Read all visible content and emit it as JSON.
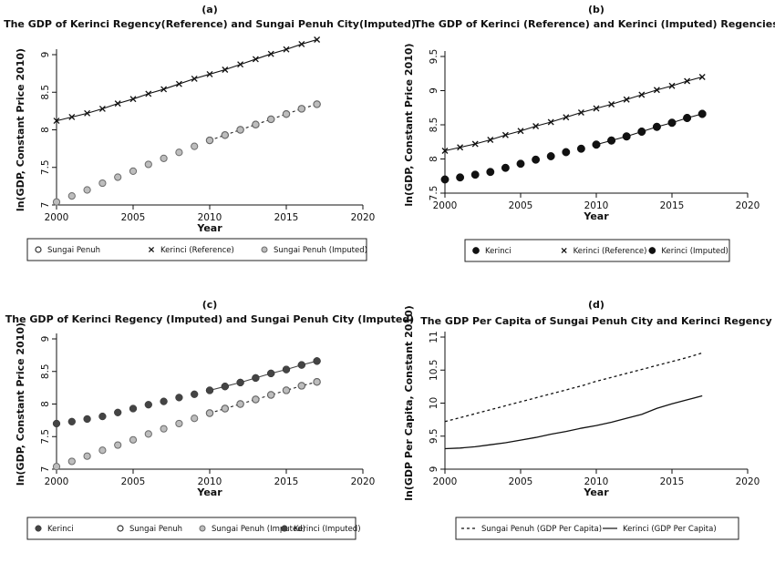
{
  "chart_data": [
    {
      "type": "line",
      "panel": "(a)",
      "title": "The GDP of Kerinci Regency(Reference) and Sungai Penuh City(Imputed)",
      "xlabel": "Year",
      "ylabel": "ln(GDP, Constant Price 2010)",
      "xlim": [
        2000,
        2020
      ],
      "ylim": [
        7,
        9
      ],
      "xticks": [
        2000,
        2005,
        2010,
        2015,
        2020
      ],
      "yticks": [
        7,
        7.5,
        8,
        8.5,
        9
      ],
      "legend_position": "bottom",
      "series": [
        {
          "name": "Sungai Penuh",
          "marker": "hollow-circle",
          "line": "dash",
          "color": "#222222",
          "x": [
            2010,
            2011,
            2012,
            2013,
            2014,
            2015,
            2016,
            2017
          ],
          "y": [
            7.86,
            7.93,
            8.0,
            8.07,
            8.14,
            8.21,
            8.28,
            8.34
          ]
        },
        {
          "name": "Kerinci (Reference)",
          "marker": "x",
          "line": "solid",
          "color": "#111111",
          "x": [
            2000,
            2001,
            2002,
            2003,
            2004,
            2005,
            2006,
            2007,
            2008,
            2009,
            2010,
            2011,
            2012,
            2013,
            2014,
            2015,
            2016,
            2017
          ],
          "y": [
            8.12,
            8.17,
            8.22,
            8.28,
            8.35,
            8.41,
            8.48,
            8.54,
            8.61,
            8.68,
            8.74,
            8.8,
            8.87,
            8.94,
            9.01,
            9.07,
            9.14,
            9.2
          ]
        },
        {
          "name": "Sungai Penuh (Imputed)",
          "marker": "grey-circle",
          "line": "none",
          "color": "#8a8a8a",
          "x": [
            2000,
            2001,
            2002,
            2003,
            2004,
            2005,
            2006,
            2007,
            2008,
            2009,
            2010,
            2011,
            2012,
            2013,
            2014,
            2015,
            2016,
            2017
          ],
          "y": [
            7.04,
            7.12,
            7.2,
            7.29,
            7.37,
            7.45,
            7.54,
            7.62,
            7.7,
            7.78,
            7.86,
            7.93,
            8.0,
            8.07,
            8.14,
            8.21,
            8.28,
            8.34
          ]
        }
      ]
    },
    {
      "type": "line",
      "panel": "(b)",
      "title": "The GDP of Kerinci (Reference) and Kerinci (Imputed) Regencies",
      "xlabel": "Year",
      "ylabel": "ln(GDP, Constant Price 2010)",
      "xlim": [
        2000,
        2020
      ],
      "ylim": [
        7.5,
        9.5
      ],
      "xticks": [
        2000,
        2005,
        2010,
        2015,
        2020
      ],
      "yticks": [
        7.5,
        8,
        8.5,
        9,
        9.5
      ],
      "legend_position": "bottom",
      "series": [
        {
          "name": "Kerinci",
          "marker": "black-circle",
          "line": "solid",
          "color": "#111111",
          "x": [
            2010,
            2011,
            2012,
            2013,
            2014,
            2015,
            2016,
            2017
          ],
          "y": [
            8.21,
            8.27,
            8.33,
            8.4,
            8.47,
            8.53,
            8.6,
            8.66
          ]
        },
        {
          "name": "Kerinci (Reference)",
          "marker": "x",
          "line": "solid",
          "color": "#111111",
          "x": [
            2000,
            2001,
            2002,
            2003,
            2004,
            2005,
            2006,
            2007,
            2008,
            2009,
            2010,
            2011,
            2012,
            2013,
            2014,
            2015,
            2016,
            2017
          ],
          "y": [
            8.12,
            8.17,
            8.22,
            8.28,
            8.35,
            8.41,
            8.48,
            8.54,
            8.61,
            8.68,
            8.74,
            8.8,
            8.87,
            8.94,
            9.01,
            9.07,
            9.14,
            9.2
          ]
        },
        {
          "name": "Kerinci (Imputed)",
          "marker": "black-circle",
          "line": "none",
          "color": "#111111",
          "x": [
            2000,
            2001,
            2002,
            2003,
            2004,
            2005,
            2006,
            2007,
            2008,
            2009,
            2010,
            2011,
            2012,
            2013,
            2014,
            2015,
            2016,
            2017
          ],
          "y": [
            7.7,
            7.73,
            7.77,
            7.81,
            7.87,
            7.93,
            7.99,
            8.04,
            8.1,
            8.15,
            8.21,
            8.27,
            8.33,
            8.4,
            8.47,
            8.53,
            8.6,
            8.66
          ]
        }
      ]
    },
    {
      "type": "line",
      "panel": "(c)",
      "title": "The GDP of Kerinci Regency (Imputed) and Sungai Penuh City (Imputed)",
      "xlabel": "Year",
      "ylabel": "ln(GDP, Constant Price 2010)",
      "xlim": [
        2000,
        2020
      ],
      "ylim": [
        7,
        9
      ],
      "xticks": [
        2000,
        2005,
        2010,
        2015,
        2020
      ],
      "yticks": [
        7,
        7.5,
        8,
        8.5,
        9
      ],
      "legend_position": "bottom",
      "series": [
        {
          "name": "Kerinci",
          "marker": "dark-circle",
          "line": "solid",
          "color": "#444444",
          "x": [
            2010,
            2011,
            2012,
            2013,
            2014,
            2015,
            2016,
            2017
          ],
          "y": [
            8.21,
            8.27,
            8.33,
            8.4,
            8.47,
            8.53,
            8.6,
            8.66
          ]
        },
        {
          "name": "Sungai Penuh",
          "marker": "hollow-circle",
          "line": "dash",
          "color": "#222222",
          "x": [
            2010,
            2011,
            2012,
            2013,
            2014,
            2015,
            2016,
            2017
          ],
          "y": [
            7.86,
            7.93,
            8.0,
            8.07,
            8.14,
            8.21,
            8.28,
            8.34
          ]
        },
        {
          "name": "Sungai Penuh (Imputed)",
          "marker": "grey-circle",
          "line": "none",
          "color": "#8a8a8a",
          "x": [
            2000,
            2001,
            2002,
            2003,
            2004,
            2005,
            2006,
            2007,
            2008,
            2009,
            2010,
            2011,
            2012,
            2013,
            2014,
            2015,
            2016,
            2017
          ],
          "y": [
            7.04,
            7.12,
            7.2,
            7.29,
            7.37,
            7.45,
            7.54,
            7.62,
            7.7,
            7.78,
            7.86,
            7.93,
            8.0,
            8.07,
            8.14,
            8.21,
            8.28,
            8.34
          ]
        },
        {
          "name": "Kerinci (Imputed)",
          "marker": "dark-circle",
          "line": "none",
          "color": "#444444",
          "x": [
            2000,
            2001,
            2002,
            2003,
            2004,
            2005,
            2006,
            2007,
            2008,
            2009,
            2010,
            2011,
            2012,
            2013,
            2014,
            2015,
            2016,
            2017
          ],
          "y": [
            7.7,
            7.73,
            7.77,
            7.81,
            7.87,
            7.93,
            7.99,
            8.04,
            8.1,
            8.15,
            8.21,
            8.27,
            8.33,
            8.4,
            8.47,
            8.53,
            8.6,
            8.66
          ]
        }
      ]
    },
    {
      "type": "line",
      "panel": "(d)",
      "title": "The GDP Per Capita of Sungai Penuh City and Kerinci Regency",
      "xlabel": "Year",
      "ylabel": "ln(GDP Per Capita, Constant 2010)",
      "xlim": [
        2000,
        2020
      ],
      "ylim": [
        9,
        11
      ],
      "xticks": [
        2000,
        2005,
        2010,
        2015,
        2020
      ],
      "yticks": [
        9,
        9.5,
        10,
        10.5,
        11
      ],
      "legend_position": "bottom",
      "series": [
        {
          "name": "Sungai Penuh (GDP Per Capita)",
          "marker": "none",
          "line": "dash",
          "color": "#111111",
          "x": [
            2000,
            2001,
            2002,
            2003,
            2004,
            2005,
            2006,
            2007,
            2008,
            2009,
            2010,
            2011,
            2012,
            2013,
            2014,
            2015,
            2016,
            2017
          ],
          "y": [
            9.72,
            9.78,
            9.84,
            9.9,
            9.96,
            10.02,
            10.08,
            10.14,
            10.2,
            10.26,
            10.33,
            10.39,
            10.45,
            10.51,
            10.57,
            10.63,
            10.69,
            10.76
          ]
        },
        {
          "name": "Kerinci (GDP Per Capita)",
          "marker": "none",
          "line": "solid",
          "color": "#111111",
          "x": [
            2000,
            2001,
            2002,
            2003,
            2004,
            2005,
            2006,
            2007,
            2008,
            2009,
            2010,
            2011,
            2012,
            2013,
            2014,
            2015,
            2016,
            2017
          ],
          "y": [
            9.31,
            9.32,
            9.34,
            9.37,
            9.4,
            9.44,
            9.48,
            9.53,
            9.57,
            9.62,
            9.66,
            9.71,
            9.77,
            9.83,
            9.92,
            9.99,
            10.05,
            10.11
          ]
        }
      ]
    }
  ]
}
